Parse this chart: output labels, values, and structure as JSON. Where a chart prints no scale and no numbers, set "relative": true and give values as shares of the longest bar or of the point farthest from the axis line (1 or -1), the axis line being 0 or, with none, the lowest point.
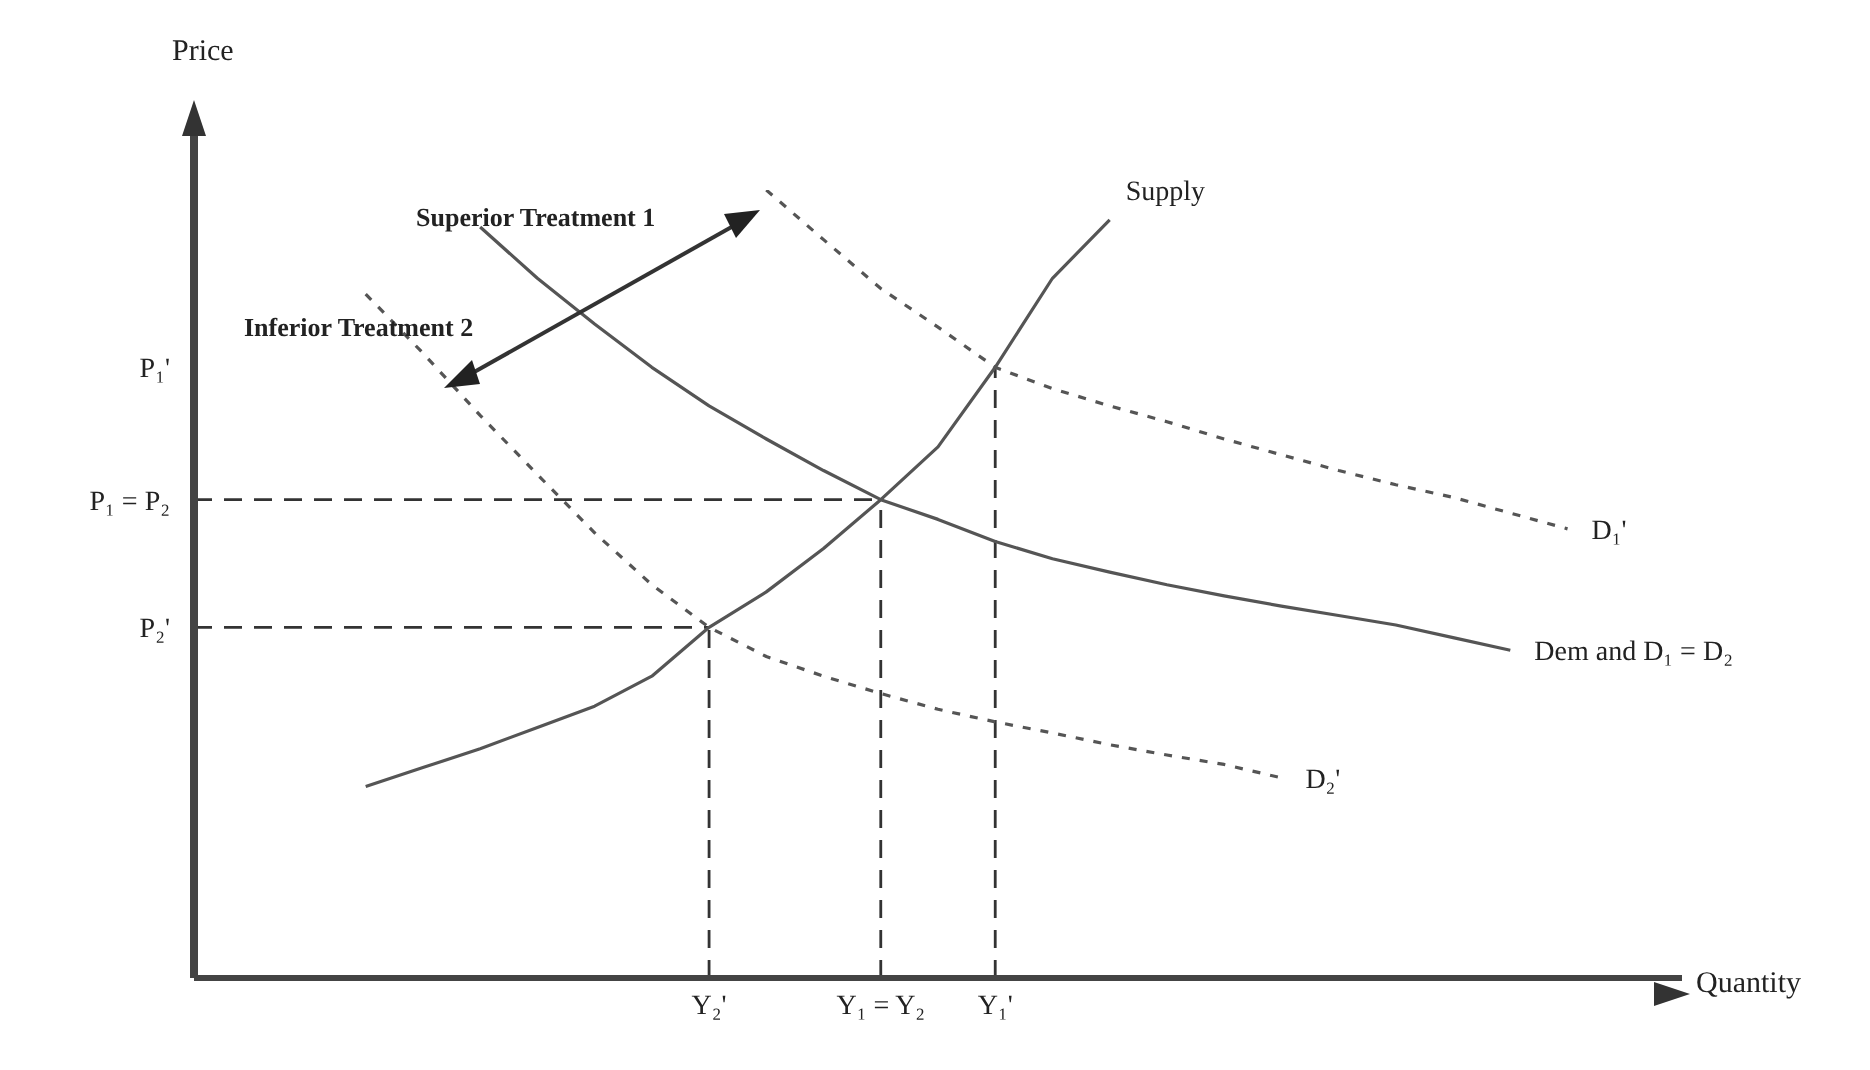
{
  "chart_data": {
    "type": "line",
    "relative": true,
    "xlabel": "Quantity",
    "ylabel": "Price",
    "categories": [
      null,
      null,
      null,
      null,
      null,
      null,
      null,
      null,
      null,
      "Y₂'",
      null,
      null,
      "Y₁ = Y₂",
      null,
      "Y₁'",
      null,
      null,
      null,
      null,
      null,
      null,
      null,
      null,
      null,
      null,
      null,
      null
    ],
    "ref_lines": [
      {
        "axis": "x",
        "value": "Y₂'",
        "line_style": "dashed"
      },
      {
        "axis": "x",
        "value": "Y₁ = Y₂",
        "line_style": "dashed"
      },
      {
        "axis": "x",
        "value": "Y₁'",
        "line_style": "dashed"
      },
      {
        "axis": "y",
        "value": 0.445,
        "label": "P₂'",
        "line_style": "dashed"
      },
      {
        "axis": "y",
        "value": 0.607,
        "label": "P₁ = P₂",
        "line_style": "dashed"
      }
    ],
    "grid": false,
    "legend": false,
    "marker": "none",
    "annotations": [
      "Superior Treatment  1",
      "Inferior Treatment 2",
      "P₁'"
    ],
    "series": [
      {
        "name": "Supply",
        "color": "#555555",
        "line_style": "solid",
        "values": [
          null,
          null,
          null,
          0.243,
          0.267,
          0.291,
          0.318,
          0.345,
          0.383,
          0.445,
          0.49,
          0.545,
          0.607,
          0.674,
          0.775,
          0.888,
          0.962,
          null,
          null,
          null,
          null,
          null,
          null,
          null,
          null,
          null,
          null
        ]
      },
      {
        "name": "Dem and D₁ = D₂",
        "color": "#555555",
        "line_style": "solid",
        "values": [
          null,
          null,
          null,
          null,
          null,
          0.953,
          0.888,
          0.83,
          0.775,
          0.726,
          0.684,
          0.644,
          0.607,
          0.582,
          0.554,
          0.532,
          0.515,
          0.499,
          0.485,
          0.472,
          0.46,
          0.448,
          0.432,
          0.416,
          null,
          null,
          null
        ]
      },
      {
        "name": "D₁'",
        "color": "#555555",
        "line_style": "dashed",
        "values": [
          null,
          null,
          null,
          null,
          null,
          null,
          null,
          null,
          null,
          null,
          1,
          0.937,
          0.875,
          0.826,
          0.775,
          0.748,
          0.726,
          0.706,
          0.684,
          0.664,
          0.644,
          0.626,
          0.61,
          0.59,
          0.57,
          null,
          null
        ]
      },
      {
        "name": "D₂'",
        "color": "#555555",
        "line_style": "dashed",
        "values": [
          null,
          null,
          null,
          0.868,
          0.793,
          0.714,
          0.639,
          0.565,
          0.499,
          0.445,
          0.408,
          0.383,
          0.361,
          0.341,
          0.325,
          0.311,
          0.296,
          0.283,
          0.271,
          0.254,
          null,
          null,
          null,
          null,
          null,
          null,
          null
        ]
      }
    ]
  }
}
